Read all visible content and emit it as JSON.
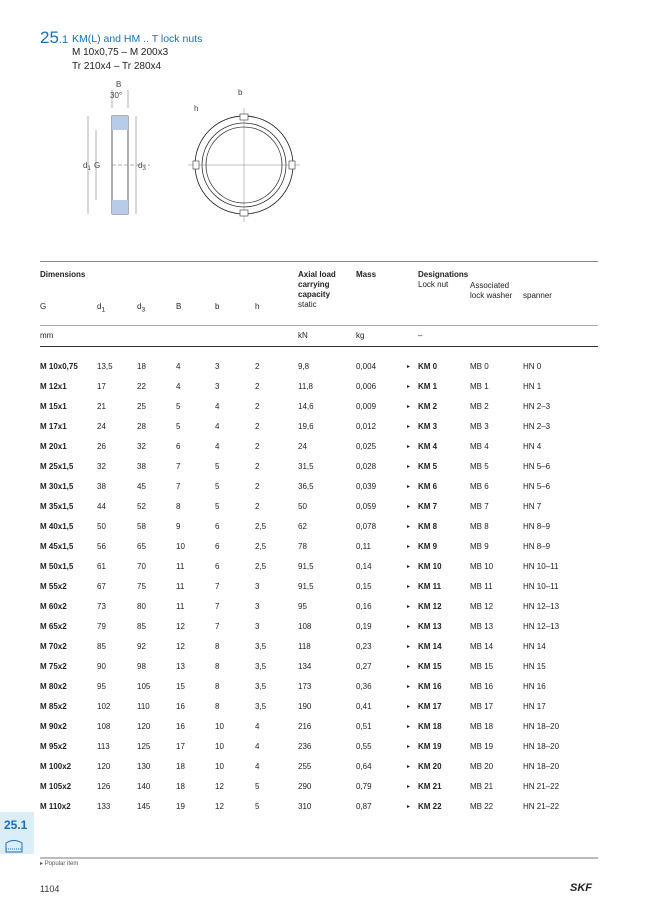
{
  "section_number": "25",
  "section_sub": ".1",
  "title": "KM(L) and HM .. T lock nuts",
  "subtitle_lines": [
    "M 10x0,75 – M 200x3",
    "Tr 210x4 – Tr 280x4"
  ],
  "drawing_labels": {
    "B": "B",
    "angle": "30°",
    "d1": "d1",
    "G": "G",
    "d3": "d3",
    "b": "b",
    "h": "h"
  },
  "header": {
    "dimensions": "Dimensions",
    "G": "G",
    "d1": "d",
    "d1_sub": "1",
    "d3": "d",
    "d3_sub": "3",
    "B": "B",
    "b": "b",
    "h": "h",
    "axial": "Axial load",
    "carrying": "carrying",
    "capacity": "capacity",
    "static": "static",
    "mass": "Mass",
    "designations": "Designations",
    "lock_nut": "Lock nut",
    "associated": "Associated",
    "lock_washer": "lock washer",
    "spanner": "spanner"
  },
  "units": {
    "mm": "mm",
    "kN": "kN",
    "kg": "kg",
    "dash": "–"
  },
  "rows": [
    [
      "M 10x0,75",
      "13,5",
      "18",
      "4",
      "3",
      "2",
      "9,8",
      "0,004",
      "KM 0",
      "MB 0",
      "HN 0"
    ],
    [
      "M 12x1",
      "17",
      "22",
      "4",
      "3",
      "2",
      "11,8",
      "0,006",
      "KM 1",
      "MB 1",
      "HN 1"
    ],
    [
      "M 15x1",
      "21",
      "25",
      "5",
      "4",
      "2",
      "14,6",
      "0,009",
      "KM 2",
      "MB 2",
      "HN 2–3"
    ],
    [
      "M 17x1",
      "24",
      "28",
      "5",
      "4",
      "2",
      "19,6",
      "0,012",
      "KM 3",
      "MB 3",
      "HN 2–3"
    ],
    [
      "M 20x1",
      "26",
      "32",
      "6",
      "4",
      "2",
      "24",
      "0,025",
      "KM 4",
      "MB 4",
      "HN 4"
    ],
    [
      "M 25x1,5",
      "32",
      "38",
      "7",
      "5",
      "2",
      "31,5",
      "0,028",
      "KM 5",
      "MB 5",
      "HN 5–6"
    ],
    [
      "M 30x1,5",
      "38",
      "45",
      "7",
      "5",
      "2",
      "36,5",
      "0,039",
      "KM 6",
      "MB 6",
      "HN 5–6"
    ],
    [
      "M 35x1,5",
      "44",
      "52",
      "8",
      "5",
      "2",
      "50",
      "0,059",
      "KM 7",
      "MB 7",
      "HN 7"
    ],
    [
      "M 40x1,5",
      "50",
      "58",
      "9",
      "6",
      "2,5",
      "62",
      "0,078",
      "KM 8",
      "MB 8",
      "HN 8–9"
    ],
    [
      "M 45x1,5",
      "56",
      "65",
      "10",
      "6",
      "2,5",
      "78",
      "0,11",
      "KM 9",
      "MB 9",
      "HN 8–9"
    ],
    [
      "M 50x1,5",
      "61",
      "70",
      "11",
      "6",
      "2,5",
      "91,5",
      "0,14",
      "KM 10",
      "MB 10",
      "HN 10–11"
    ],
    [
      "M 55x2",
      "67",
      "75",
      "11",
      "7",
      "3",
      "91,5",
      "0,15",
      "KM 11",
      "MB 11",
      "HN 10–11"
    ],
    [
      "M 60x2",
      "73",
      "80",
      "11",
      "7",
      "3",
      "95",
      "0,16",
      "KM 12",
      "MB 12",
      "HN 12–13"
    ],
    [
      "M 65x2",
      "79",
      "85",
      "12",
      "7",
      "3",
      "108",
      "0,19",
      "KM 13",
      "MB 13",
      "HN 12–13"
    ],
    [
      "M 70x2",
      "85",
      "92",
      "12",
      "8",
      "3,5",
      "118",
      "0,23",
      "KM 14",
      "MB 14",
      "HN 14"
    ],
    [
      "M 75x2",
      "90",
      "98",
      "13",
      "8",
      "3,5",
      "134",
      "0,27",
      "KM 15",
      "MB 15",
      "HN 15"
    ],
    [
      "M 80x2",
      "95",
      "105",
      "15",
      "8",
      "3,5",
      "173",
      "0,36",
      "KM 16",
      "MB 16",
      "HN 16"
    ],
    [
      "M 85x2",
      "102",
      "110",
      "16",
      "8",
      "3,5",
      "190",
      "0,41",
      "KM 17",
      "MB 17",
      "HN 17"
    ],
    [
      "M 90x2",
      "108",
      "120",
      "16",
      "10",
      "4",
      "216",
      "0,51",
      "KM 18",
      "MB 18",
      "HN 18–20"
    ],
    [
      "M 95x2",
      "113",
      "125",
      "17",
      "10",
      "4",
      "236",
      "0,55",
      "KM 19",
      "MB 19",
      "HN 18–20"
    ],
    [
      "M 100x2",
      "120",
      "130",
      "18",
      "10",
      "4",
      "255",
      "0,64",
      "KM 20",
      "MB 20",
      "HN 18–20"
    ],
    [
      "M 105x2",
      "126",
      "140",
      "18",
      "12",
      "5",
      "290",
      "0,79",
      "KM 21",
      "MB 21",
      "HN 21–22"
    ],
    [
      "M 110x2",
      "133",
      "145",
      "19",
      "12",
      "5",
      "310",
      "0,87",
      "KM 22",
      "MB 22",
      "HN 21–22"
    ]
  ],
  "popular_marker": "▸",
  "footnote": "Popular item",
  "page_number": "1104",
  "side_tab": "25.1",
  "logo": "SKF",
  "accent_color": "#1a6fb5"
}
